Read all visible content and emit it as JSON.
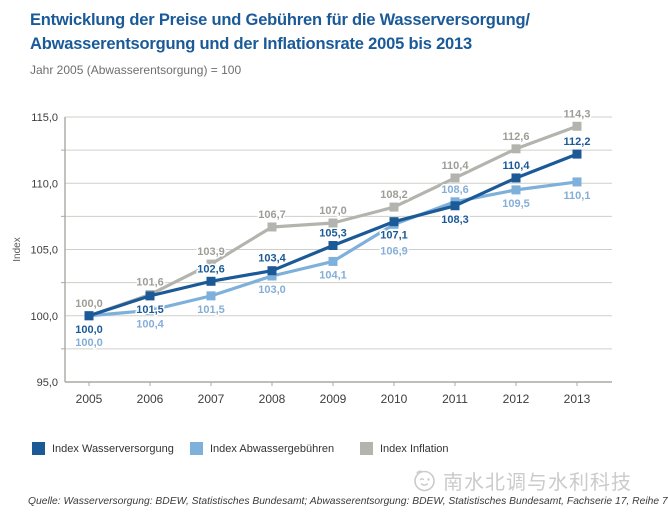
{
  "header": {
    "title_line1": "Entwicklung der Preise und Gebühren für die Wasserversorgung/",
    "title_line2": "Abwasserentsorgung und der Inflationsrate 2005 bis 2013",
    "subtitle": "Jahr 2005 (Abwasserentsorgung) = 100"
  },
  "colors": {
    "title": "#1b5a98",
    "subtitle": "#6e6e6e",
    "dark_blue": "#1b5a97",
    "light_blue": "#7db0da",
    "gray": "#b4b4ae",
    "dark_blue_label": "#1b5a97",
    "light_blue_label": "#85aed8",
    "gray_label": "#9e9e97",
    "grid": "#cfcfca",
    "axis": "#a9a9a4",
    "tick_label": "#3d3d3d",
    "watermark": "#cbcbcb",
    "source": "#3b3b3b"
  },
  "chart_data": {
    "type": "line",
    "title": "Entwicklung der Preise und Gebühren für die Wasserversorgung/ Abwasserentsorgung und der Inflationsrate 2005 bis 2013",
    "subtitle": "Jahr 2005 (Abwasserentsorgung) = 100",
    "x": [
      2005,
      2006,
      2007,
      2008,
      2009,
      2010,
      2011,
      2012,
      2013
    ],
    "xlabel": "",
    "ylabel": "Index",
    "ylim": [
      95,
      115
    ],
    "grid": true,
    "grid_step": 2.5,
    "ytick_step": 5,
    "ytick_labels": [
      "95,0",
      "100,0",
      "105,0",
      "110,0",
      "115,0"
    ],
    "legend_position": "bottom",
    "series": [
      {
        "name": "Index Wasserversorgung",
        "color_key": "dark_blue",
        "label_color_key": "dark_blue_label",
        "values": [
          100.0,
          101.5,
          102.6,
          103.4,
          105.3,
          107.1,
          108.3,
          110.4,
          112.2
        ],
        "labels": [
          "100,0",
          "101,5",
          "102,6",
          "103,4",
          "105,3",
          "107,1",
          "108,3",
          "110,4",
          "112,2"
        ],
        "label_pos": [
          "below",
          "below",
          "above",
          "above",
          "above",
          "below",
          "below",
          "above",
          "above"
        ]
      },
      {
        "name": "Index Abwassergebühren",
        "color_key": "light_blue",
        "label_color_key": "light_blue_label",
        "values": [
          100.0,
          100.4,
          101.5,
          103.0,
          104.1,
          106.9,
          108.6,
          109.5,
          110.1
        ],
        "labels": [
          "100,0",
          "100,4",
          "101,5",
          "103,0",
          "104,1",
          "106,9",
          "108,6",
          "109,5",
          "110,1"
        ],
        "label_pos": [
          "below2",
          "below",
          "below",
          "below",
          "below",
          "below2",
          "above",
          "below",
          "below"
        ]
      },
      {
        "name": "Index Inflation",
        "color_key": "gray",
        "label_color_key": "gray_label",
        "values": [
          100.0,
          101.6,
          103.9,
          106.7,
          107.0,
          108.2,
          110.4,
          112.6,
          114.3
        ],
        "labels": [
          "100,0",
          "101,6",
          "103,9",
          "106,7",
          "107,0",
          "108,2",
          "110,4",
          "112,6",
          "114,3"
        ],
        "label_pos": [
          "above",
          "above",
          "above",
          "above",
          "above",
          "above",
          "above",
          "above",
          "above"
        ]
      }
    ]
  },
  "legend": {
    "items": [
      {
        "label": "Index Wasserversorgung",
        "color_key": "dark_blue"
      },
      {
        "label": "Index Abwassergebühren",
        "color_key": "light_blue"
      },
      {
        "label": "Index Inflation",
        "color_key": "gray"
      }
    ]
  },
  "watermark": {
    "text": "南水北调与水利科技",
    "logo": "smiley-face-logo"
  },
  "source": {
    "text": "Quelle: Wasserversorgung: BDEW, Statistisches Bundesamt; Abwasserentsorgung: BDEW, Statistisches Bundesamt, Fachserie 17, Reihe 7"
  }
}
